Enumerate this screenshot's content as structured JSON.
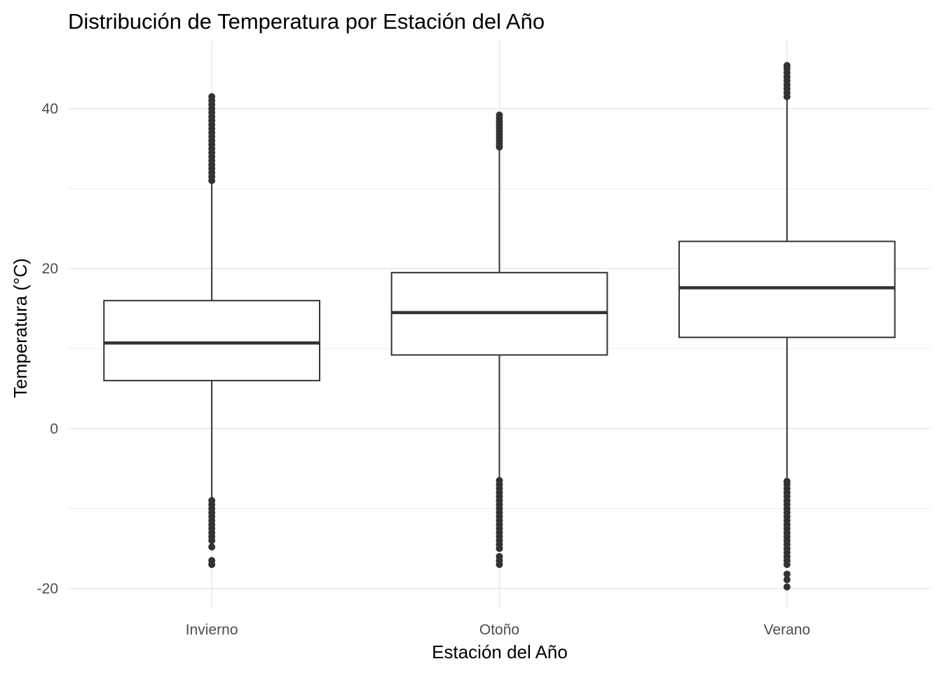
{
  "chart_data": {
    "type": "boxplot",
    "title": "Distribución de Temperatura por Estación del Año",
    "xlabel": "Estación del Año",
    "ylabel": "Temperatura (°C)",
    "ylim": [
      -22.5,
      48.5
    ],
    "y_ticks": [
      -20,
      0,
      20,
      40
    ],
    "y_tick_labels": [
      "-20",
      "0",
      "20",
      "40"
    ],
    "grid": true,
    "categories": [
      "Invierno",
      "Otoño",
      "Verano"
    ],
    "boxes": [
      {
        "category": "Invierno",
        "q1": 6.0,
        "median": 10.7,
        "q3": 16.0,
        "whisker_low": -8.8,
        "whisker_high": 30.8,
        "outliers_high": [
          31.0,
          31.5,
          32.0,
          32.5,
          33.0,
          33.5,
          34.0,
          34.5,
          35.0,
          35.5,
          36.0,
          36.5,
          37.0,
          37.5,
          38.0,
          38.5,
          39.0,
          39.5,
          40.0,
          40.5,
          41.0,
          41.5
        ],
        "outliers_low": [
          -9.0,
          -9.5,
          -10.0,
          -10.5,
          -11.0,
          -11.5,
          -12.0,
          -12.5,
          -13.0,
          -13.5,
          -14.0,
          -14.8,
          -16.5,
          -17.0
        ]
      },
      {
        "category": "Otoño",
        "q1": 9.2,
        "median": 14.5,
        "q3": 19.5,
        "whisker_low": -6.2,
        "whisker_high": 35.0,
        "outliers_high": [
          35.2,
          35.6,
          36.0,
          36.4,
          36.8,
          37.2,
          37.6,
          38.0,
          38.4,
          38.8,
          39.2
        ],
        "outliers_low": [
          -6.5,
          -7.0,
          -7.5,
          -8.0,
          -8.5,
          -9.0,
          -9.5,
          -10.0,
          -10.5,
          -11.0,
          -11.5,
          -12.0,
          -12.5,
          -13.0,
          -13.5,
          -14.0,
          -14.5,
          -15.0,
          -16.0,
          -16.5,
          -17.0
        ]
      },
      {
        "category": "Verano",
        "q1": 11.4,
        "median": 17.6,
        "q3": 23.4,
        "whisker_low": -6.3,
        "whisker_high": 41.2,
        "outliers_high": [
          41.5,
          42.0,
          42.5,
          43.0,
          43.5,
          44.0,
          44.5,
          45.0,
          45.4
        ],
        "outliers_low": [
          -6.6,
          -7.0,
          -7.5,
          -8.0,
          -8.5,
          -9.0,
          -9.5,
          -10.0,
          -10.5,
          -11.0,
          -11.5,
          -12.0,
          -12.5,
          -13.0,
          -13.5,
          -14.0,
          -14.5,
          -15.0,
          -15.5,
          -16.0,
          -16.5,
          -17.0,
          -18.2,
          -18.9,
          -19.8
        ]
      }
    ],
    "colors": {
      "box_stroke": "#333333",
      "box_fill": "#ffffff",
      "points": "#333333",
      "grid": "#ebebeb",
      "tick_text": "#4d4d4d"
    }
  }
}
